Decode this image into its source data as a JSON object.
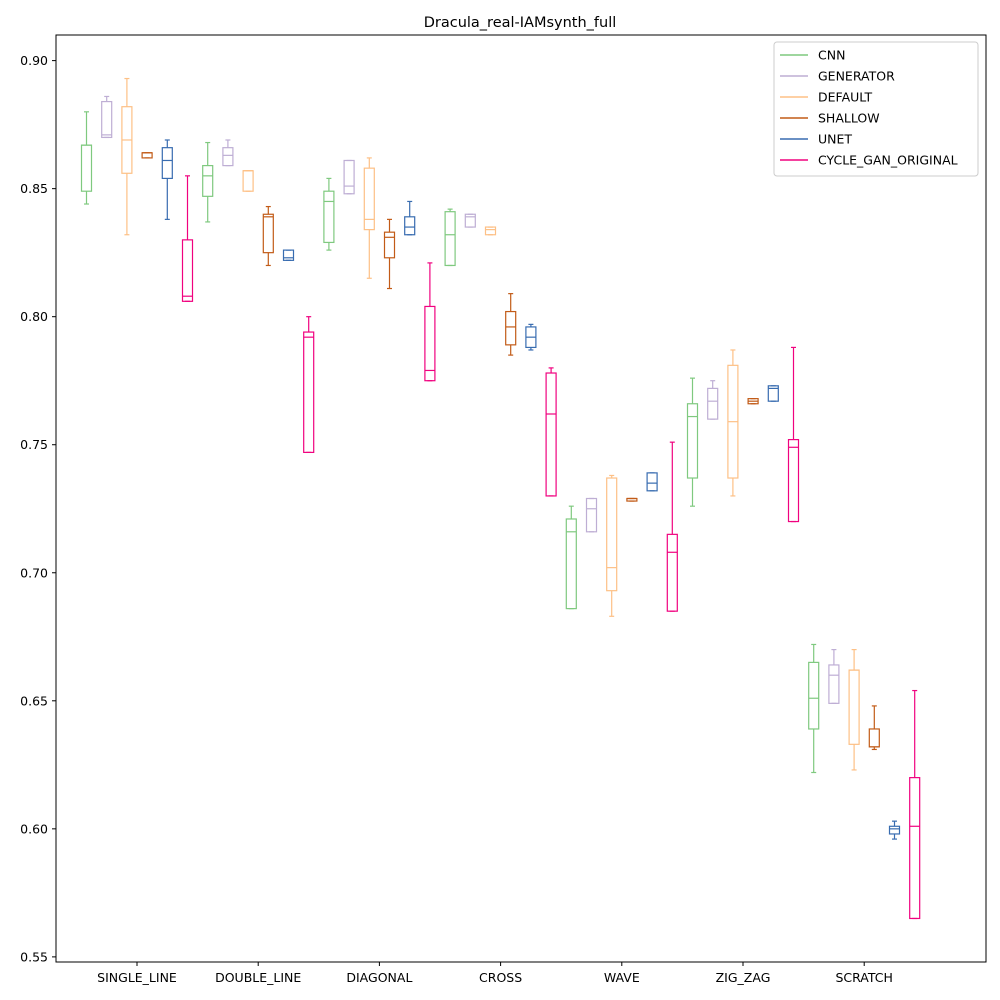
{
  "chart_data": {
    "type": "box",
    "title": "Dracula_real-IAMsynth_full",
    "xlabel": "",
    "ylabel": "",
    "ylim": [
      0.548,
      0.91
    ],
    "yticks": [
      "0.55",
      "0.60",
      "0.65",
      "0.70",
      "0.75",
      "0.80",
      "0.85",
      "0.90"
    ],
    "categories": [
      "SINGLE_LINE",
      "DOUBLE_LINE",
      "DIAGONAL",
      "CROSS",
      "WAVE",
      "ZIG_ZAG",
      "SCRATCH"
    ],
    "grid": false,
    "legend_position": "top-right",
    "series": [
      {
        "name": "CNN",
        "color": "#7fc97f",
        "boxes": [
          {
            "category": "SINGLE_LINE",
            "whislo": 0.844,
            "q1": 0.849,
            "med": 0.867,
            "q3": 0.867,
            "whishi": 0.88
          },
          {
            "category": "DOUBLE_LINE",
            "whislo": 0.837,
            "q1": 0.847,
            "med": 0.855,
            "q3": 0.859,
            "whishi": 0.868
          },
          {
            "category": "DIAGONAL",
            "whislo": 0.826,
            "q1": 0.829,
            "med": 0.845,
            "q3": 0.849,
            "whishi": 0.854
          },
          {
            "category": "CROSS",
            "whislo": 0.82,
            "q1": 0.82,
            "med": 0.832,
            "q3": 0.841,
            "whishi": 0.842
          },
          {
            "category": "WAVE",
            "whislo": 0.686,
            "q1": 0.686,
            "med": 0.716,
            "q3": 0.721,
            "whishi": 0.726
          },
          {
            "category": "ZIG_ZAG",
            "whislo": 0.726,
            "q1": 0.737,
            "med": 0.761,
            "q3": 0.766,
            "whishi": 0.776
          },
          {
            "category": "SCRATCH",
            "whislo": 0.622,
            "q1": 0.639,
            "med": 0.651,
            "q3": 0.665,
            "whishi": 0.672
          }
        ]
      },
      {
        "name": "GENERATOR",
        "color": "#beaed4",
        "boxes": [
          {
            "category": "SINGLE_LINE",
            "whislo": 0.87,
            "q1": 0.87,
            "med": 0.871,
            "q3": 0.884,
            "whishi": 0.886
          },
          {
            "category": "DOUBLE_LINE",
            "whislo": 0.859,
            "q1": 0.859,
            "med": 0.863,
            "q3": 0.866,
            "whishi": 0.869
          },
          {
            "category": "DIAGONAL",
            "whislo": 0.848,
            "q1": 0.848,
            "med": 0.851,
            "q3": 0.861,
            "whishi": 0.861
          },
          {
            "category": "CROSS",
            "whislo": 0.835,
            "q1": 0.835,
            "med": 0.839,
            "q3": 0.84,
            "whishi": 0.84
          },
          {
            "category": "WAVE",
            "whislo": 0.716,
            "q1": 0.716,
            "med": 0.725,
            "q3": 0.729,
            "whishi": 0.729
          },
          {
            "category": "ZIG_ZAG",
            "whislo": 0.76,
            "q1": 0.76,
            "med": 0.767,
            "q3": 0.772,
            "whishi": 0.775
          },
          {
            "category": "SCRATCH",
            "whislo": 0.649,
            "q1": 0.649,
            "med": 0.66,
            "q3": 0.664,
            "whishi": 0.67
          }
        ]
      },
      {
        "name": "DEFAULT",
        "color": "#fdc086",
        "boxes": [
          {
            "category": "SINGLE_LINE",
            "whislo": 0.832,
            "q1": 0.856,
            "med": 0.869,
            "q3": 0.882,
            "whishi": 0.893
          },
          {
            "category": "DOUBLE_LINE",
            "whislo": 0.849,
            "q1": 0.849,
            "med": 0.857,
            "q3": 0.857,
            "whishi": 0.857
          },
          {
            "category": "DIAGONAL",
            "whislo": 0.815,
            "q1": 0.834,
            "med": 0.838,
            "q3": 0.858,
            "whishi": 0.862
          },
          {
            "category": "CROSS",
            "whislo": 0.832,
            "q1": 0.832,
            "med": 0.834,
            "q3": 0.835,
            "whishi": 0.835
          },
          {
            "category": "WAVE",
            "whislo": 0.683,
            "q1": 0.693,
            "med": 0.702,
            "q3": 0.737,
            "whishi": 0.738
          },
          {
            "category": "ZIG_ZAG",
            "whislo": 0.73,
            "q1": 0.737,
            "med": 0.759,
            "q3": 0.781,
            "whishi": 0.787
          },
          {
            "category": "SCRATCH",
            "whislo": 0.623,
            "q1": 0.633,
            "med": 0.662,
            "q3": 0.662,
            "whishi": 0.67
          }
        ]
      },
      {
        "name": "SHALLOW",
        "color": "#c25b17",
        "boxes": [
          {
            "category": "SINGLE_LINE",
            "whislo": 0.862,
            "q1": 0.862,
            "med": 0.864,
            "q3": 0.864,
            "whishi": 0.864
          },
          {
            "category": "DOUBLE_LINE",
            "whislo": 0.82,
            "q1": 0.825,
            "med": 0.839,
            "q3": 0.84,
            "whishi": 0.843
          },
          {
            "category": "DIAGONAL",
            "whislo": 0.811,
            "q1": 0.823,
            "med": 0.831,
            "q3": 0.833,
            "whishi": 0.838
          },
          {
            "category": "CROSS",
            "whislo": 0.785,
            "q1": 0.789,
            "med": 0.796,
            "q3": 0.802,
            "whishi": 0.809
          },
          {
            "category": "WAVE",
            "whislo": 0.728,
            "q1": 0.728,
            "med": 0.729,
            "q3": 0.729,
            "whishi": 0.729
          },
          {
            "category": "ZIG_ZAG",
            "whislo": 0.766,
            "q1": 0.766,
            "med": 0.767,
            "q3": 0.768,
            "whishi": 0.768
          },
          {
            "category": "SCRATCH",
            "whislo": 0.631,
            "q1": 0.632,
            "med": 0.632,
            "q3": 0.639,
            "whishi": 0.648
          }
        ]
      },
      {
        "name": "UNET",
        "color": "#386cb0",
        "boxes": [
          {
            "category": "SINGLE_LINE",
            "whislo": 0.838,
            "q1": 0.854,
            "med": 0.861,
            "q3": 0.866,
            "whishi": 0.869
          },
          {
            "category": "DOUBLE_LINE",
            "whislo": 0.822,
            "q1": 0.822,
            "med": 0.823,
            "q3": 0.826,
            "whishi": 0.826
          },
          {
            "category": "DIAGONAL",
            "whislo": 0.832,
            "q1": 0.832,
            "med": 0.835,
            "q3": 0.839,
            "whishi": 0.845
          },
          {
            "category": "CROSS",
            "whislo": 0.787,
            "q1": 0.788,
            "med": 0.792,
            "q3": 0.796,
            "whishi": 0.797
          },
          {
            "category": "WAVE",
            "whislo": 0.732,
            "q1": 0.732,
            "med": 0.735,
            "q3": 0.739,
            "whishi": 0.739
          },
          {
            "category": "ZIG_ZAG",
            "whislo": 0.767,
            "q1": 0.767,
            "med": 0.772,
            "q3": 0.773,
            "whishi": 0.773
          },
          {
            "category": "SCRATCH",
            "whislo": 0.596,
            "q1": 0.598,
            "med": 0.6,
            "q3": 0.601,
            "whishi": 0.603
          }
        ]
      },
      {
        "name": "CYCLE_GAN_ORIGINAL",
        "color": "#f0027f",
        "boxes": [
          {
            "category": "SINGLE_LINE",
            "whislo": 0.806,
            "q1": 0.806,
            "med": 0.808,
            "q3": 0.83,
            "whishi": 0.855
          },
          {
            "category": "DOUBLE_LINE",
            "whislo": 0.747,
            "q1": 0.747,
            "med": 0.792,
            "q3": 0.794,
            "whishi": 0.8
          },
          {
            "category": "DIAGONAL",
            "whislo": 0.775,
            "q1": 0.775,
            "med": 0.779,
            "q3": 0.804,
            "whishi": 0.821
          },
          {
            "category": "CROSS",
            "whislo": 0.73,
            "q1": 0.73,
            "med": 0.762,
            "q3": 0.778,
            "whishi": 0.78
          },
          {
            "category": "WAVE",
            "whislo": 0.685,
            "q1": 0.685,
            "med": 0.708,
            "q3": 0.715,
            "whishi": 0.751
          },
          {
            "category": "ZIG_ZAG",
            "whislo": 0.72,
            "q1": 0.72,
            "med": 0.749,
            "q3": 0.752,
            "whishi": 0.788
          },
          {
            "category": "SCRATCH",
            "whislo": 0.565,
            "q1": 0.565,
            "med": 0.601,
            "q3": 0.62,
            "whishi": 0.654
          }
        ]
      }
    ]
  }
}
